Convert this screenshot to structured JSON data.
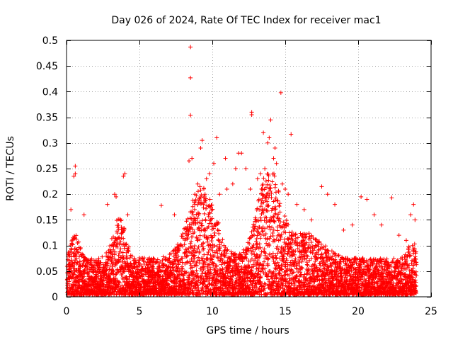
{
  "chart_data": {
    "type": "scatter",
    "title": "Day 026 of 2024, Rate Of TEC Index for receiver mac1",
    "xlabel": "GPS time / hours",
    "ylabel": "ROTI / TECUs",
    "xlim": [
      0,
      25
    ],
    "ylim": [
      0,
      0.5
    ],
    "xticks": [
      0,
      5,
      10,
      15,
      20,
      25
    ],
    "yticks": [
      0,
      0.05,
      0.1,
      0.15,
      0.2,
      0.25,
      0.3,
      0.35,
      0.4,
      0.45,
      0.5
    ],
    "grid": true,
    "marker": "+",
    "color": "#ff0000",
    "legend": "none",
    "series": [
      {
        "values_note_free": true,
        "points": [
          [
            8.5,
            0.487
          ],
          [
            8.5,
            0.427
          ],
          [
            8.5,
            0.354
          ],
          [
            14.7,
            0.398
          ],
          [
            12.7,
            0.36
          ],
          [
            12.7,
            0.355
          ],
          [
            14.0,
            0.345
          ],
          [
            13.5,
            0.32
          ],
          [
            15.4,
            0.317
          ],
          [
            10.3,
            0.31
          ],
          [
            9.3,
            0.305
          ],
          [
            9.2,
            0.29
          ],
          [
            13.9,
            0.31
          ],
          [
            13.8,
            0.3
          ],
          [
            14.3,
            0.29
          ],
          [
            11.8,
            0.28
          ],
          [
            12.0,
            0.28
          ],
          [
            10.9,
            0.27
          ],
          [
            8.6,
            0.27
          ],
          [
            8.4,
            0.265
          ],
          [
            10.1,
            0.26
          ],
          [
            0.6,
            0.255
          ],
          [
            0.6,
            0.24
          ],
          [
            0.5,
            0.235
          ],
          [
            4.0,
            0.24
          ],
          [
            3.9,
            0.235
          ],
          [
            3.3,
            0.2
          ],
          [
            3.4,
            0.195
          ],
          [
            11.6,
            0.25
          ],
          [
            12.3,
            0.25
          ],
          [
            14.4,
            0.26
          ],
          [
            14.2,
            0.27
          ],
          [
            13.6,
            0.25
          ],
          [
            13.3,
            0.24
          ],
          [
            13.1,
            0.23
          ],
          [
            9.8,
            0.24
          ],
          [
            9.6,
            0.23
          ],
          [
            9.0,
            0.22
          ],
          [
            8.8,
            0.2
          ],
          [
            9.5,
            0.2
          ],
          [
            10.5,
            0.2
          ],
          [
            11.0,
            0.21
          ],
          [
            11.4,
            0.22
          ],
          [
            12.6,
            0.21
          ],
          [
            14.8,
            0.22
          ],
          [
            15.0,
            0.21
          ],
          [
            15.2,
            0.2
          ],
          [
            17.5,
            0.215
          ],
          [
            20.2,
            0.195
          ],
          [
            20.6,
            0.19
          ],
          [
            22.3,
            0.193
          ],
          [
            17.9,
            0.2
          ],
          [
            18.4,
            0.18
          ],
          [
            21.1,
            0.16
          ],
          [
            0.3,
            0.17
          ],
          [
            1.2,
            0.16
          ],
          [
            2.8,
            0.18
          ],
          [
            4.2,
            0.16
          ],
          [
            6.5,
            0.178
          ],
          [
            7.4,
            0.16
          ],
          [
            23.8,
            0.18
          ],
          [
            23.6,
            0.16
          ],
          [
            23.9,
            0.15
          ],
          [
            15.8,
            0.18
          ],
          [
            16.3,
            0.17
          ],
          [
            16.8,
            0.15
          ],
          [
            19.6,
            0.14
          ],
          [
            19.0,
            0.13
          ],
          [
            21.6,
            0.14
          ],
          [
            22.8,
            0.12
          ],
          [
            23.3,
            0.11
          ]
        ]
      }
    ]
  }
}
